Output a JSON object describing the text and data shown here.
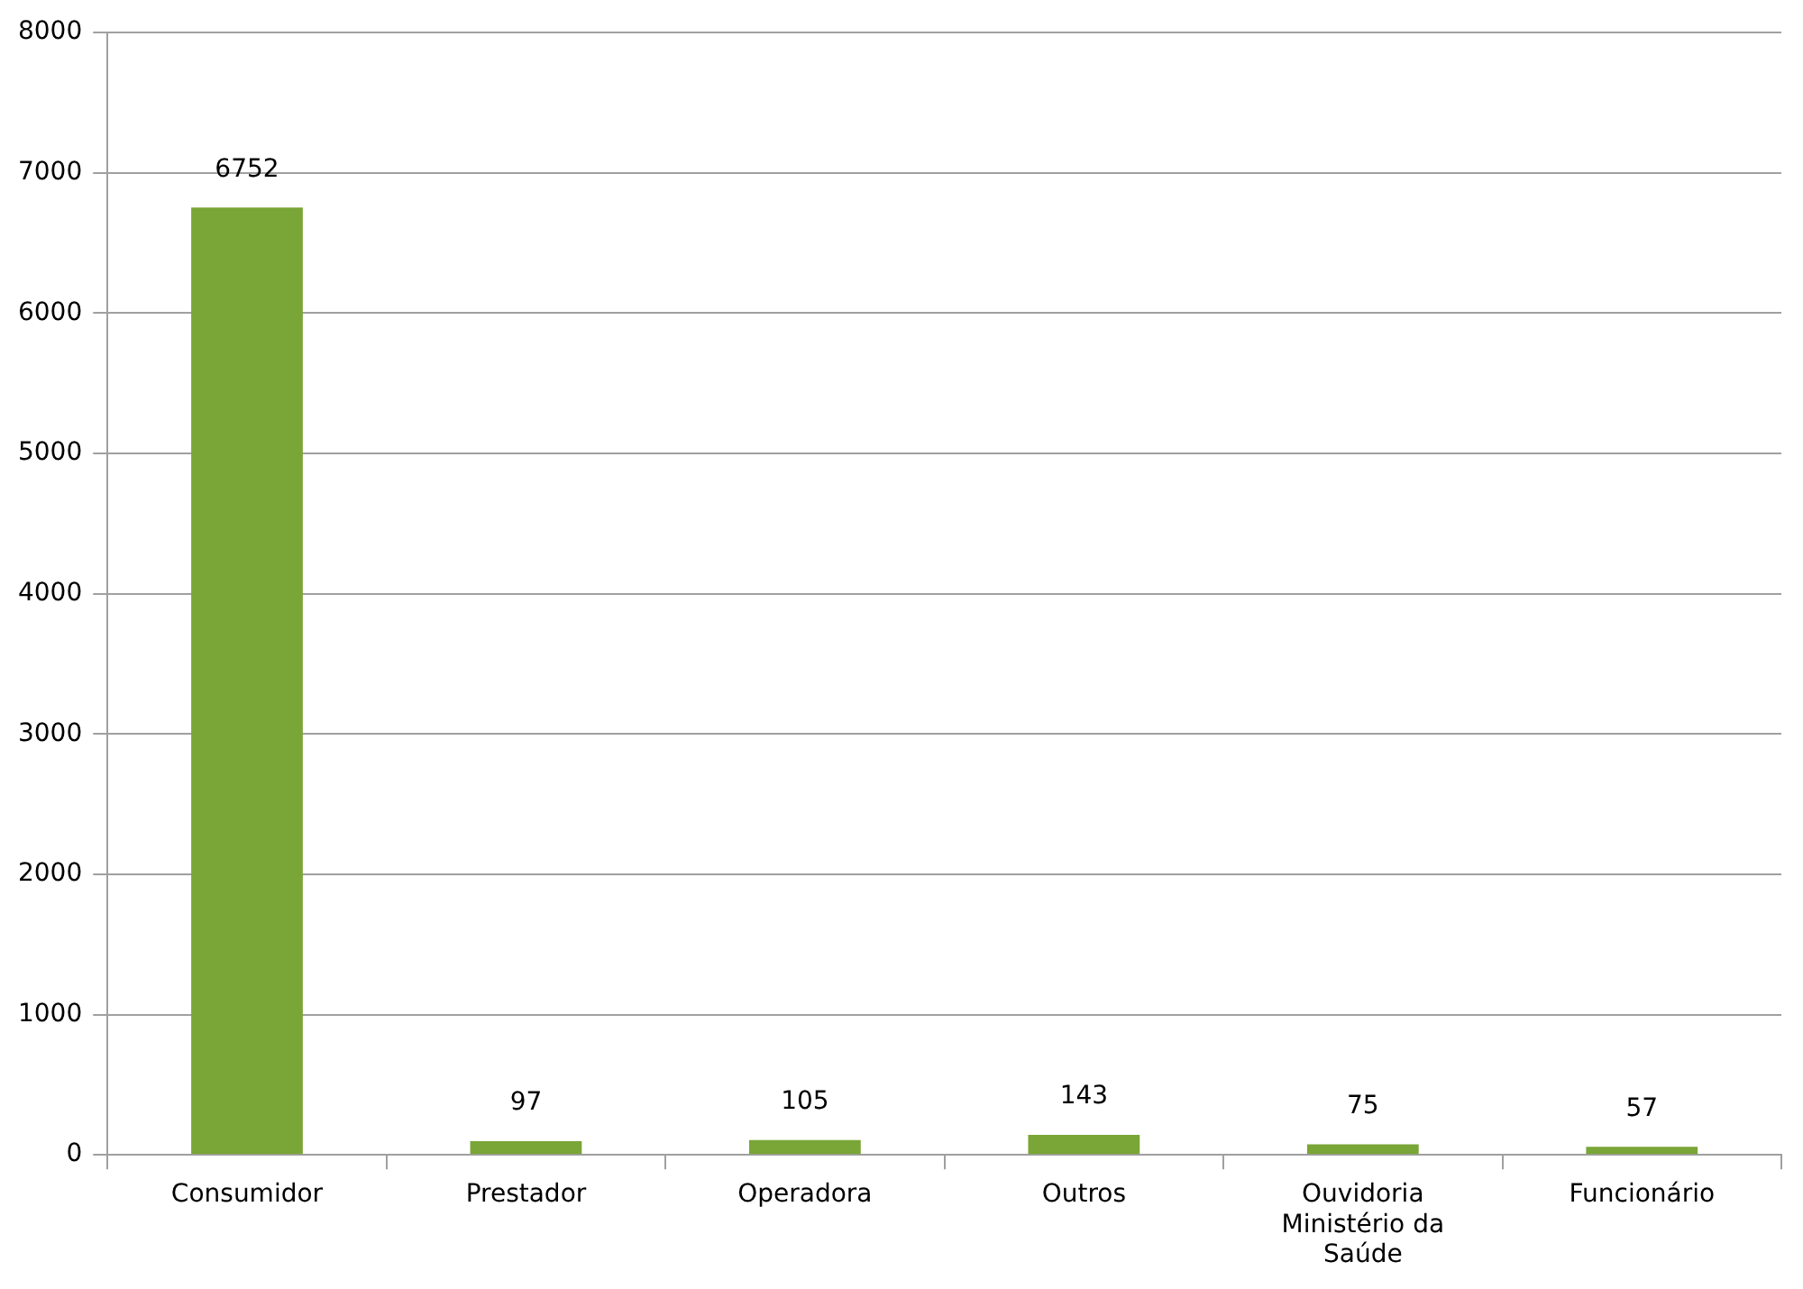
{
  "chart_data": {
    "type": "bar",
    "categories": [
      "Consumidor",
      "Prestador",
      "Operadora",
      "Outros",
      "Ouvidoria Ministério da Saúde",
      "Funcionário"
    ],
    "values": [
      6752,
      97,
      105,
      143,
      75,
      57
    ],
    "color": "#7aa537",
    "ylim": [
      0,
      8000
    ],
    "yticks": [
      0,
      1000,
      2000,
      3000,
      4000,
      5000,
      6000,
      7000,
      8000
    ],
    "grid": "y",
    "data_labels": true
  }
}
